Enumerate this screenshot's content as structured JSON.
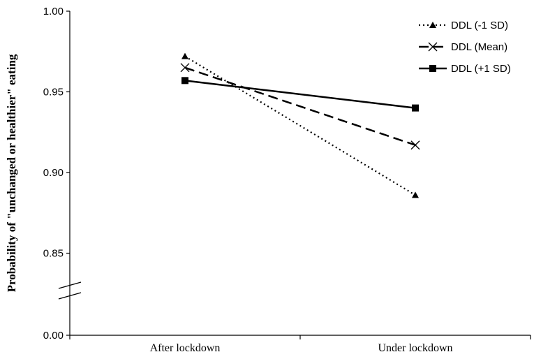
{
  "chart_data": {
    "type": "line",
    "title": "",
    "xlabel": "",
    "ylabel": "Probability of \"unchanged or healthier\" eating",
    "categories": [
      "After lockdown",
      "Under lockdown"
    ],
    "y_ticks": [
      "1.00",
      "0.95",
      "0.90",
      "0.85",
      "0.00"
    ],
    "ylim": [
      0.83,
      1.0
    ],
    "axis_break": true,
    "grid": false,
    "legend_position": "top-right",
    "series": [
      {
        "name": "DDL (-1 SD)",
        "values": [
          0.972,
          0.886
        ],
        "line_style": "dotted",
        "marker": "triangle",
        "color": "#000000"
      },
      {
        "name": "DDL (Mean)",
        "values": [
          0.965,
          0.917
        ],
        "line_style": "dashed",
        "marker": "x",
        "color": "#000000"
      },
      {
        "name": "DDL (+1 SD)",
        "values": [
          0.957,
          0.94
        ],
        "line_style": "solid",
        "marker": "square",
        "color": "#000000"
      }
    ]
  }
}
